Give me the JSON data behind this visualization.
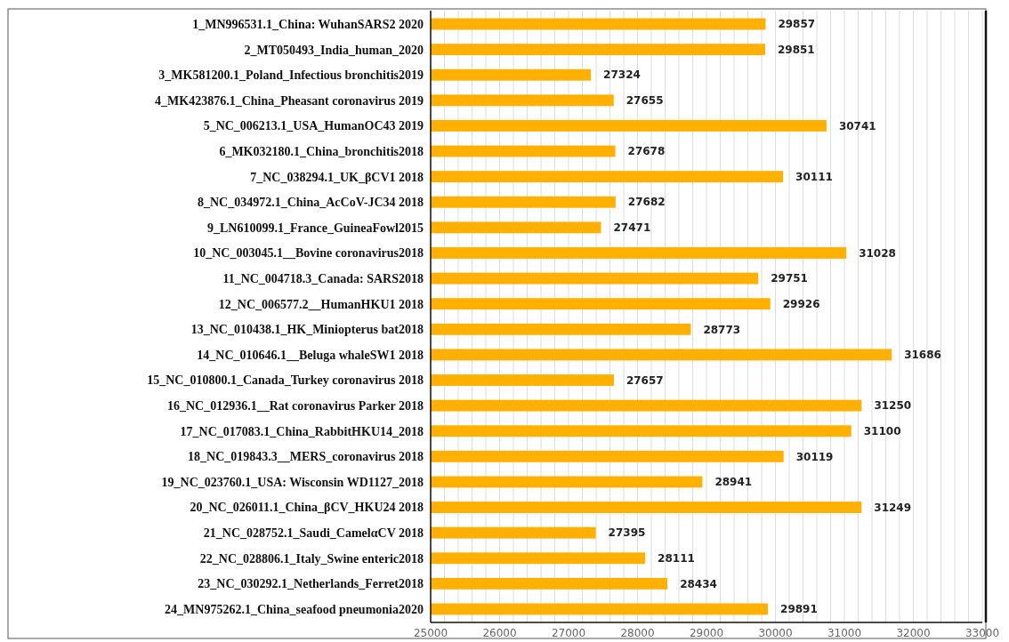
{
  "chart_data": {
    "type": "bar",
    "orientation": "horizontal",
    "categories": [
      "1_MN996531.1_China: WuhanSARS2 2020",
      "2_MT050493_India_human_2020",
      "3_MK581200.1_Poland_Infectious bronchitis2019",
      "4_MK423876.1_China_Pheasant coronavirus 2019",
      "5_NC_006213.1_USA_HumanOC43 2019",
      "6_MK032180.1_China_bronchitis2018",
      "7_NC_038294.1_UK_βCV1 2018",
      "8_NC_034972.1_China_AcCoV-JC34 2018",
      "9_LN610099.1_France_GuineaFowl2015",
      "10_NC_003045.1__Bovine coronavirus2018",
      "11_NC_004718.3_Canada: SARS2018",
      "12_NC_006577.2__HumanHKU1 2018",
      "13_NC_010438.1_HK_Miniopterus bat2018",
      "14_NC_010646.1__Beluga whaleSW1 2018",
      "15_NC_010800.1_Canada_Turkey coronavirus 2018",
      "16_NC_012936.1__Rat coronavirus Parker 2018",
      "17_NC_017083.1_China_RabbitHKU14_2018",
      "18_NC_019843.3__MERS_coronavirus 2018",
      "19_NC_023760.1_USA: Wisconsin WD1127_2018",
      "20_NC_026011.1_China_βCV_HKU24 2018",
      "21_NC_028752.1_Saudi_CamelαCV 2018",
      "22_NC_028806.1_Italy_Swine enteric2018",
      "23_NC_030292.1_Netherlands_Ferret2018",
      "24_MN975262.1_China_seafood pneumonia2020"
    ],
    "values": [
      29857,
      29851,
      27324,
      27655,
      30741,
      27678,
      30111,
      27682,
      27471,
      31028,
      29751,
      29926,
      28773,
      31686,
      27657,
      31250,
      31100,
      30119,
      28941,
      31249,
      27395,
      28111,
      28434,
      29891
    ],
    "color": "#ffb000",
    "data_labels": true,
    "grid": "x",
    "xlim": [
      25000,
      33000
    ],
    "xticks": [
      25000,
      {
        "value": 25200,
        "label": null
      },
      {
        "value": 25400,
        "label": null
      },
      {
        "value": 25600,
        "label": null
      },
      {
        "value": 25800,
        "label": null
      },
      26000,
      {
        "value": 26200,
        "label": null
      },
      {
        "value": 26400,
        "label": null
      },
      {
        "value": 26600,
        "label": null
      },
      {
        "value": 26800,
        "label": null
      },
      27000,
      {
        "value": 27200,
        "label": null
      },
      {
        "value": 27400,
        "label": null
      },
      {
        "value": 27600,
        "label": null
      },
      {
        "value": 27800,
        "label": null
      },
      28000,
      {
        "value": 28200,
        "label": null
      },
      {
        "value": 28400,
        "label": null
      },
      {
        "value": 28600,
        "label": null
      },
      {
        "value": 28800,
        "label": null
      },
      29000,
      {
        "value": 29200,
        "label": null
      },
      {
        "value": 29400,
        "label": null
      },
      {
        "value": 29600,
        "label": null
      },
      {
        "value": 29800,
        "label": null
      },
      30000,
      {
        "value": 30200,
        "label": null
      },
      {
        "value": 30400,
        "label": null
      },
      {
        "value": 30600,
        "label": null
      },
      {
        "value": 30800,
        "label": null
      },
      31000,
      {
        "value": 31200,
        "label": null
      },
      {
        "value": 31400,
        "label": null
      },
      {
        "value": 31600,
        "label": null
      },
      {
        "value": 31800,
        "label": null
      },
      32000,
      {
        "value": 32200,
        "label": null
      },
      {
        "value": 32400,
        "label": null
      },
      {
        "value": 32600,
        "label": null
      },
      {
        "value": 32800,
        "label": null
      },
      33000
    ]
  }
}
